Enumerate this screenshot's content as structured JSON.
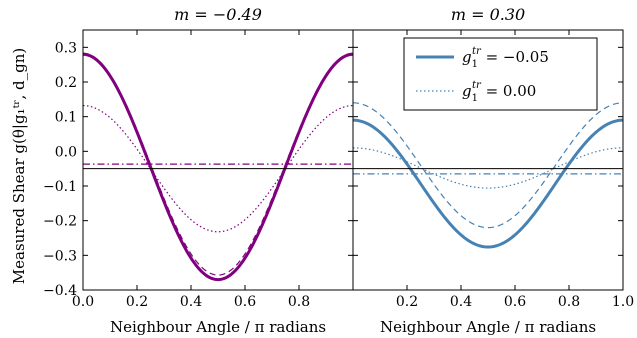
{
  "chart_data": [
    {
      "type": "line",
      "title": "m = −0.49",
      "xlabel": "Neighbour Angle / π radians",
      "ylabel": "Measured Shear g(θ|g₁ᵗʳ, d_gn)",
      "xlim": [
        0.0,
        1.0
      ],
      "ylim": [
        -0.4,
        0.35
      ],
      "xticks": [
        0.0,
        0.2,
        0.4,
        0.6,
        0.8
      ],
      "xtick_labels": [
        "0.0",
        "0.2",
        "0.4",
        "0.6",
        "0.8"
      ],
      "yticks": [
        -0.4,
        -0.3,
        -0.2,
        -0.1,
        0.0,
        0.1,
        0.2,
        0.3
      ],
      "ytick_labels": [
        "−0.4",
        "−0.3",
        "−0.2",
        "−0.1",
        "0.0",
        "0.1",
        "0.2",
        "0.3"
      ],
      "color": "#800080",
      "series": [
        {
          "role": "measured g1=-0.05",
          "style": "solid-thick",
          "amplitude": 0.325,
          "offset": -0.045
        },
        {
          "role": "model g1=-0.05",
          "style": "dashed",
          "amplitude": 0.32,
          "offset": -0.037
        },
        {
          "role": "measured g1=0.00",
          "style": "dotted",
          "amplitude": 0.182,
          "offset": -0.05
        },
        {
          "role": "constant",
          "style": "dashdot",
          "value": -0.037
        },
        {
          "role": "reference",
          "style": "solid-thin-black",
          "value": -0.05
        }
      ]
    },
    {
      "type": "line",
      "title": "m = 0.30",
      "xlabel": "Neighbour Angle / π radians",
      "xlim": [
        0.0,
        1.0
      ],
      "ylim": [
        -0.4,
        0.35
      ],
      "xticks": [
        0.2,
        0.4,
        0.6,
        0.8,
        1.0
      ],
      "xtick_labels": [
        "0.2",
        "0.4",
        "0.6",
        "0.8",
        "1.0"
      ],
      "color": "#4682b4",
      "legend": {
        "position": "top-right",
        "entries": [
          {
            "label_base": "g",
            "label_sub": "1",
            "label_sup": "tr",
            "label_rest": " = −0.05",
            "style": "solid"
          },
          {
            "label_base": "g",
            "label_sub": "1",
            "label_sup": "tr",
            "label_rest": " = 0.00",
            "style": "dotted"
          }
        ]
      },
      "series": [
        {
          "role": "measured g1=-0.05",
          "style": "solid-thick",
          "amplitude": 0.183,
          "offset": -0.093
        },
        {
          "role": "model g1=-0.05",
          "style": "dashed",
          "amplitude": 0.18,
          "offset": -0.04
        },
        {
          "role": "measured g1=0.00",
          "style": "dotted",
          "amplitude": 0.058,
          "offset": -0.048
        },
        {
          "role": "constant",
          "style": "dashdot",
          "value": -0.065
        },
        {
          "role": "reference",
          "style": "solid-thin-black",
          "value": -0.05
        }
      ]
    }
  ]
}
